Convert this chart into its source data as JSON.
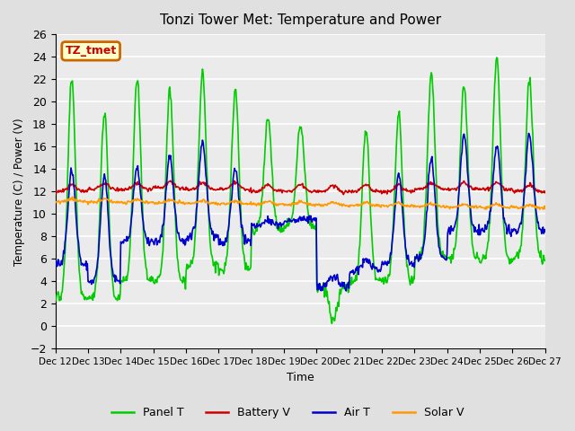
{
  "title": "Tonzi Tower Met: Temperature and Power",
  "xlabel": "Time",
  "ylabel": "Temperature (C) / Power (V)",
  "ylim": [
    -2,
    26
  ],
  "yticks": [
    -2,
    0,
    2,
    4,
    6,
    8,
    10,
    12,
    14,
    16,
    18,
    20,
    22,
    24,
    26
  ],
  "xtick_labels": [
    "Dec 12",
    "Dec 13",
    "Dec 14",
    "Dec 15",
    "Dec 16",
    "Dec 17",
    "Dec 18",
    "Dec 19",
    "Dec 20",
    "Dec 21",
    "Dec 22",
    "Dec 23",
    "Dec 24",
    "Dec 25",
    "Dec 26",
    "Dec 27"
  ],
  "annotation_text": "TZ_tmet",
  "annotation_bg": "#ffffcc",
  "annotation_border": "#cc6600",
  "annotation_text_color": "#cc0000",
  "panel_t_color": "#00cc00",
  "battery_v_color": "#cc0000",
  "air_t_color": "#0000cc",
  "solar_v_color": "#ff9900",
  "bg_color": "#e0e0e0",
  "plot_bg_color": "#ebebeb",
  "grid_color": "#ffffff",
  "legend_labels": [
    "Panel T",
    "Battery V",
    "Air T",
    "Solar V"
  ],
  "n_days": 15,
  "pts_per_day": 48,
  "panel_peaks": [
    22,
    19,
    22,
    21,
    22.5,
    21,
    18.5,
    18,
    0.5,
    17.5,
    19,
    22.5,
    21.5,
    24,
    22
  ],
  "panel_nights": [
    2.5,
    2.5,
    4,
    4,
    5.5,
    5,
    8.5,
    9,
    3.5,
    4,
    4,
    6,
    6,
    6,
    6
  ],
  "air_peaks": [
    14,
    13.5,
    14,
    15,
    16.5,
    14,
    9.5,
    9.5,
    4.5,
    6,
    13.5,
    15,
    17,
    16,
    17
  ],
  "air_nights": [
    5.5,
    4,
    7.5,
    7.5,
    8,
    7.5,
    9,
    9.5,
    3.5,
    5,
    5.5,
    6,
    8.5,
    8.5,
    8.5
  ],
  "battery_bases": [
    12.0,
    12.2,
    12.2,
    12.3,
    12.2,
    12.2,
    12.0,
    12.0,
    12.0,
    12.0,
    12.0,
    12.2,
    12.2,
    12.2,
    12.0
  ]
}
